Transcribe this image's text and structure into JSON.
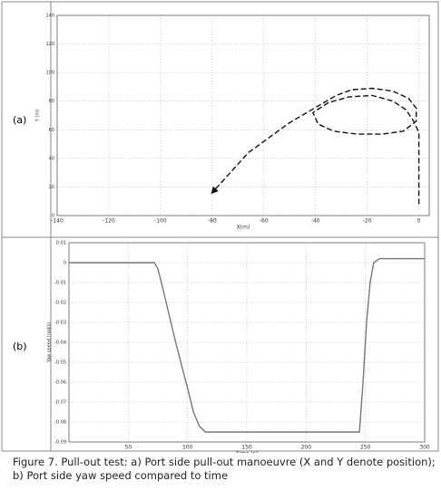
{
  "chart_data": [
    {
      "type": "line",
      "xlabel": "X(m)",
      "ylabel": "Y (m)",
      "xlim": [
        -140,
        4
      ],
      "ylim": [
        0,
        140
      ],
      "xticks": [
        -140,
        -120,
        -100,
        -80,
        -60,
        -40,
        -20,
        0
      ],
      "yticks": [
        0,
        20,
        40,
        60,
        80,
        100,
        120,
        140
      ],
      "grid": true,
      "series": [
        {
          "color": "#111111",
          "x": [
            0,
            0,
            0,
            0,
            -2,
            -5,
            -10,
            -18,
            -27,
            -35,
            -41,
            -39,
            -33,
            -24,
            -14,
            -6,
            -1,
            -1,
            -4,
            -10,
            -18,
            -26,
            -32,
            -50,
            -66,
            -80
          ],
          "y": [
            8,
            25,
            45,
            58,
            66,
            74,
            80,
            84,
            83,
            79,
            72,
            64,
            59,
            57,
            57,
            59,
            66,
            75,
            82,
            87,
            89,
            88,
            84,
            65,
            44,
            16
          ]
        }
      ]
    },
    {
      "type": "line",
      "xlabel": "Time (s)",
      "ylabel": "Yaw speed (rad/s)",
      "xlim": [
        0,
        300
      ],
      "ylim": [
        -0.09,
        0.01
      ],
      "xticks": [
        {
          "value": 0,
          "label": ""
        },
        50,
        100,
        150,
        200,
        250,
        300
      ],
      "yticks": [
        0.01,
        0,
        -0.01,
        -0.02,
        -0.03,
        -0.04,
        -0.05,
        -0.06,
        -0.07,
        -0.08,
        -0.09
      ],
      "grid": true,
      "series": [
        {
          "color": "#777777",
          "x": [
            0,
            72,
            75,
            80,
            90,
            100,
            105,
            110,
            115,
            245,
            248,
            251,
            254,
            257,
            262,
            300
          ],
          "y": [
            0,
            0,
            -0.003,
            -0.015,
            -0.04,
            -0.063,
            -0.075,
            -0.082,
            -0.085,
            -0.085,
            -0.06,
            -0.03,
            -0.01,
            0,
            0.002,
            0.002
          ]
        }
      ]
    }
  ],
  "panel_labels": [
    "(a)",
    "(b)"
  ],
  "caption": "Figure 7. Pull-out test: a) Port side pull-out manoeuvre (X and Y denote position); b) Port side yaw speed compared to time"
}
